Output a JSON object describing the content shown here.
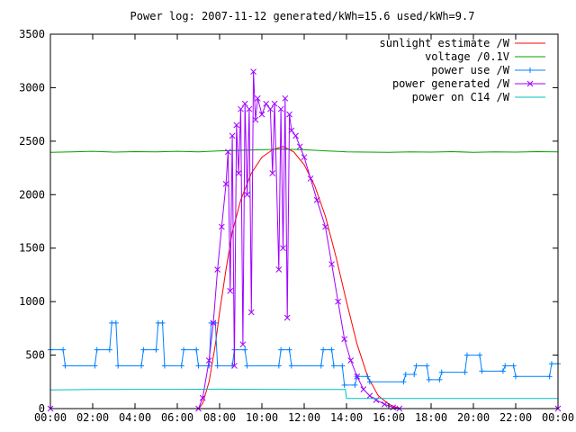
{
  "chart_data": {
    "type": "line",
    "title": "Power log: 2007-11-12 generated/kWh=15.6 used/kWh=9.7",
    "xlabel": "",
    "ylabel": "",
    "xlim": [
      0,
      24
    ],
    "ylim": [
      0,
      3500
    ],
    "x_ticks": [
      {
        "value": 0,
        "label": "00:00"
      },
      {
        "value": 2,
        "label": "02:00"
      },
      {
        "value": 4,
        "label": "04:00"
      },
      {
        "value": 6,
        "label": "06:00"
      },
      {
        "value": 8,
        "label": "08:00"
      },
      {
        "value": 10,
        "label": "10:00"
      },
      {
        "value": 12,
        "label": "12:00"
      },
      {
        "value": 14,
        "label": "14:00"
      },
      {
        "value": 16,
        "label": "16:00"
      },
      {
        "value": 18,
        "label": "18:00"
      },
      {
        "value": 20,
        "label": "20:00"
      },
      {
        "value": 22,
        "label": "22:00"
      },
      {
        "value": 24,
        "label": "00:00"
      }
    ],
    "y_ticks": [
      0,
      500,
      1000,
      1500,
      2000,
      2500,
      3000,
      3500
    ],
    "grid": false,
    "legend_position": "top-right",
    "series": [
      {
        "name": "sunlight estimate /W",
        "color": "#ff0000",
        "marker": "none",
        "points": [
          [
            0,
            0
          ],
          [
            7.0,
            0
          ],
          [
            7.2,
            50
          ],
          [
            7.5,
            250
          ],
          [
            7.8,
            600
          ],
          [
            8.0,
            900
          ],
          [
            8.3,
            1300
          ],
          [
            8.6,
            1650
          ],
          [
            9.0,
            1950
          ],
          [
            9.5,
            2200
          ],
          [
            10.0,
            2350
          ],
          [
            10.5,
            2420
          ],
          [
            11.0,
            2450
          ],
          [
            11.5,
            2400
          ],
          [
            12.0,
            2280
          ],
          [
            12.5,
            2080
          ],
          [
            13.0,
            1800
          ],
          [
            13.5,
            1420
          ],
          [
            14.0,
            1000
          ],
          [
            14.5,
            600
          ],
          [
            15.0,
            300
          ],
          [
            15.5,
            120
          ],
          [
            16.0,
            40
          ],
          [
            16.5,
            0
          ],
          [
            24,
            0
          ]
        ]
      },
      {
        "name": "voltage /0.1V",
        "color": "#00a000",
        "marker": "none",
        "points": [
          [
            0,
            2395
          ],
          [
            1,
            2400
          ],
          [
            2,
            2405
          ],
          [
            3,
            2398
          ],
          [
            4,
            2402
          ],
          [
            5,
            2400
          ],
          [
            6,
            2405
          ],
          [
            7,
            2400
          ],
          [
            8,
            2410
          ],
          [
            9,
            2415
          ],
          [
            10,
            2420
          ],
          [
            11,
            2425
          ],
          [
            12,
            2420
          ],
          [
            13,
            2410
          ],
          [
            14,
            2400
          ],
          [
            15,
            2398
          ],
          [
            16,
            2395
          ],
          [
            17,
            2400
          ],
          [
            18,
            2398
          ],
          [
            19,
            2402
          ],
          [
            20,
            2395
          ],
          [
            21,
            2400
          ],
          [
            22,
            2398
          ],
          [
            23,
            2402
          ],
          [
            24,
            2400
          ]
        ]
      },
      {
        "name": "power use /W",
        "color": "#0080ff",
        "marker": "plus",
        "points": [
          [
            0,
            550
          ],
          [
            0.6,
            550
          ],
          [
            0.7,
            400
          ],
          [
            2.1,
            400
          ],
          [
            2.2,
            550
          ],
          [
            2.8,
            550
          ],
          [
            2.9,
            800
          ],
          [
            3.1,
            800
          ],
          [
            3.2,
            400
          ],
          [
            4.3,
            400
          ],
          [
            4.4,
            550
          ],
          [
            5.0,
            550
          ],
          [
            5.1,
            800
          ],
          [
            5.3,
            800
          ],
          [
            5.4,
            400
          ],
          [
            6.2,
            400
          ],
          [
            6.3,
            550
          ],
          [
            6.9,
            550
          ],
          [
            7.0,
            400
          ],
          [
            7.5,
            400
          ],
          [
            7.6,
            800
          ],
          [
            7.8,
            800
          ],
          [
            7.9,
            400
          ],
          [
            8.6,
            400
          ],
          [
            8.7,
            550
          ],
          [
            9.2,
            550
          ],
          [
            9.3,
            400
          ],
          [
            10.8,
            400
          ],
          [
            10.9,
            550
          ],
          [
            11.3,
            550
          ],
          [
            11.4,
            400
          ],
          [
            12.8,
            400
          ],
          [
            12.9,
            550
          ],
          [
            13.3,
            550
          ],
          [
            13.4,
            400
          ],
          [
            13.8,
            400
          ],
          [
            13.9,
            220
          ],
          [
            14.4,
            220
          ],
          [
            14.5,
            300
          ],
          [
            15.0,
            300
          ],
          [
            15.1,
            250
          ],
          [
            16.7,
            250
          ],
          [
            16.8,
            320
          ],
          [
            17.2,
            320
          ],
          [
            17.3,
            400
          ],
          [
            17.8,
            400
          ],
          [
            17.9,
            270
          ],
          [
            18.4,
            270
          ],
          [
            18.5,
            340
          ],
          [
            19.6,
            340
          ],
          [
            19.7,
            500
          ],
          [
            20.3,
            500
          ],
          [
            20.4,
            350
          ],
          [
            21.4,
            350
          ],
          [
            21.5,
            400
          ],
          [
            21.9,
            400
          ],
          [
            22.0,
            300
          ],
          [
            23.6,
            300
          ],
          [
            23.7,
            420
          ],
          [
            24,
            420
          ]
        ]
      },
      {
        "name": "power generated /W",
        "color": "#a000ff",
        "marker": "cross",
        "points": [
          [
            0,
            0
          ],
          [
            7.0,
            0
          ],
          [
            7.2,
            100
          ],
          [
            7.5,
            450
          ],
          [
            7.7,
            800
          ],
          [
            7.9,
            1300
          ],
          [
            8.1,
            1700
          ],
          [
            8.3,
            2100
          ],
          [
            8.4,
            2400
          ],
          [
            8.5,
            1100
          ],
          [
            8.6,
            2550
          ],
          [
            8.7,
            400
          ],
          [
            8.8,
            2650
          ],
          [
            8.9,
            2200
          ],
          [
            9.0,
            2800
          ],
          [
            9.1,
            600
          ],
          [
            9.2,
            2850
          ],
          [
            9.3,
            2000
          ],
          [
            9.4,
            2800
          ],
          [
            9.5,
            900
          ],
          [
            9.6,
            3150
          ],
          [
            9.7,
            2700
          ],
          [
            9.8,
            2900
          ],
          [
            10.0,
            2750
          ],
          [
            10.2,
            2850
          ],
          [
            10.4,
            2800
          ],
          [
            10.5,
            2200
          ],
          [
            10.6,
            2850
          ],
          [
            10.8,
            1300
          ],
          [
            10.9,
            2800
          ],
          [
            11.0,
            1500
          ],
          [
            11.1,
            2900
          ],
          [
            11.2,
            850
          ],
          [
            11.3,
            2750
          ],
          [
            11.4,
            2600
          ],
          [
            11.6,
            2550
          ],
          [
            11.8,
            2450
          ],
          [
            12.0,
            2350
          ],
          [
            12.3,
            2150
          ],
          [
            12.6,
            1950
          ],
          [
            13.0,
            1700
          ],
          [
            13.3,
            1350
          ],
          [
            13.6,
            1000
          ],
          [
            13.9,
            650
          ],
          [
            14.2,
            450
          ],
          [
            14.5,
            300
          ],
          [
            14.8,
            180
          ],
          [
            15.1,
            120
          ],
          [
            15.4,
            80
          ],
          [
            15.8,
            40
          ],
          [
            16.2,
            10
          ],
          [
            16.5,
            0
          ],
          [
            24,
            0
          ]
        ]
      },
      {
        "name": "power on C14 /W",
        "color": "#00c0c0",
        "marker": "none",
        "points": [
          [
            0,
            175
          ],
          [
            2,
            178
          ],
          [
            4,
            180
          ],
          [
            6,
            180
          ],
          [
            8,
            182
          ],
          [
            10,
            180
          ],
          [
            12,
            178
          ],
          [
            13.95,
            178
          ],
          [
            14.0,
            95
          ],
          [
            16,
            95
          ],
          [
            18,
            95
          ],
          [
            20,
            95
          ],
          [
            22,
            95
          ],
          [
            24,
            95
          ]
        ]
      }
    ]
  }
}
